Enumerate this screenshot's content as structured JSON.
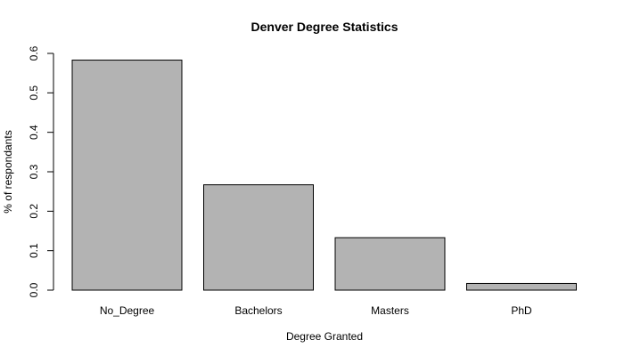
{
  "chart_data": {
    "type": "bar",
    "title": "Denver Degree Statistics",
    "xlabel": "Degree Granted",
    "ylabel": "% of respondants",
    "categories": [
      "No_Degree",
      "Bachelors",
      "Masters",
      "PhD"
    ],
    "values": [
      0.583,
      0.267,
      0.133,
      0.017
    ],
    "ylim": [
      0,
      0.6
    ],
    "yticks": [
      "0.0",
      "0.1",
      "0.2",
      "0.3",
      "0.4",
      "0.5",
      "0.6"
    ],
    "bar_color": "#b3b3b3",
    "grid": false,
    "legend": "none"
  }
}
